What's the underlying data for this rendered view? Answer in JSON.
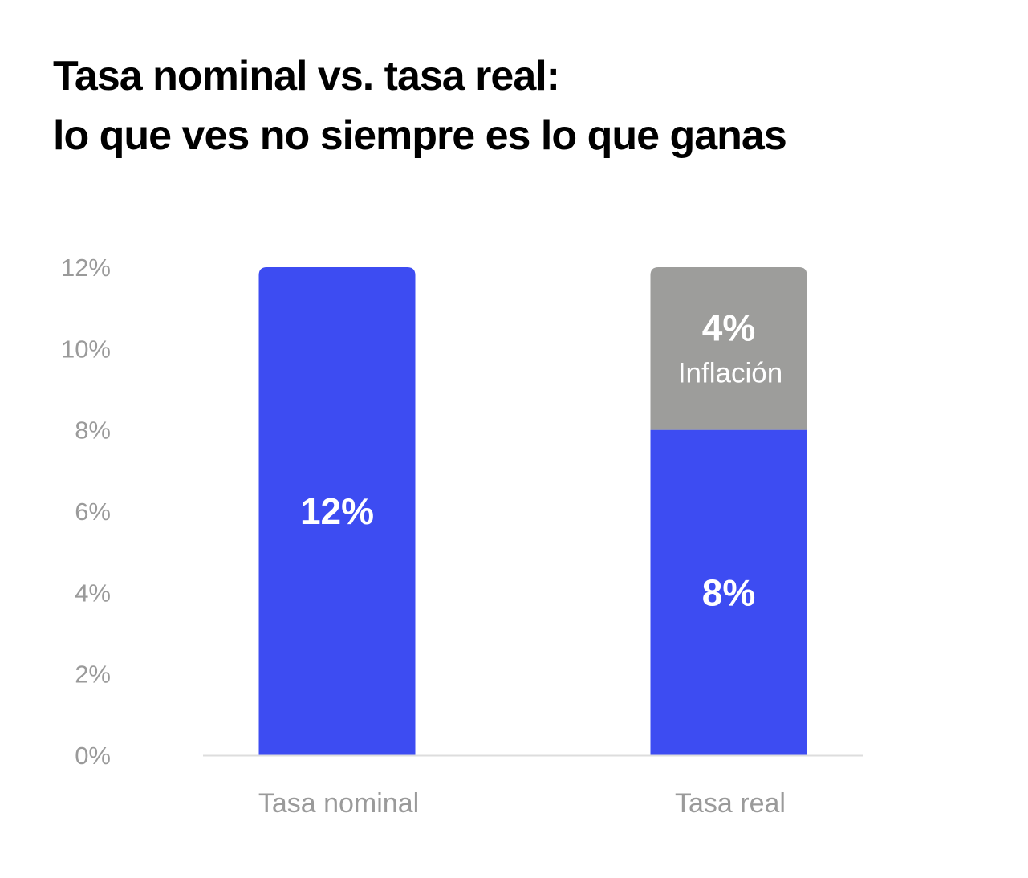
{
  "title": {
    "line1": "Tasa nominal vs. tasa real:",
    "line2": "lo que ves no siempre es lo que ganas"
  },
  "colors": {
    "real": "#3d4cf2",
    "inflation": "#9d9d9b",
    "axis_text": "#9a9a9a",
    "baseline": "#dddddd"
  },
  "chart_data": {
    "type": "bar",
    "stacked": true,
    "title": "Tasa nominal vs. tasa real: lo que ves no siempre es lo que ganas",
    "categories": [
      "Tasa nominal",
      "Tasa real"
    ],
    "series": [
      {
        "name": "Rendimiento",
        "values": [
          12,
          8
        ],
        "labels": [
          "12%",
          "8%"
        ],
        "color": "#3d4cf2"
      },
      {
        "name": "Inflación",
        "values": [
          0,
          4
        ],
        "labels": [
          "",
          "4%"
        ],
        "sublabels": [
          "",
          "Inflación"
        ],
        "color": "#9d9d9b"
      }
    ],
    "ylim": [
      0,
      12
    ],
    "yticks": [
      0,
      2,
      4,
      6,
      8,
      10,
      12
    ],
    "ytick_labels": [
      "0%",
      "2%",
      "4%",
      "6%",
      "8%",
      "10%",
      "12%"
    ],
    "xlabel": "",
    "ylabel": "",
    "grid": false,
    "legend": "none"
  }
}
